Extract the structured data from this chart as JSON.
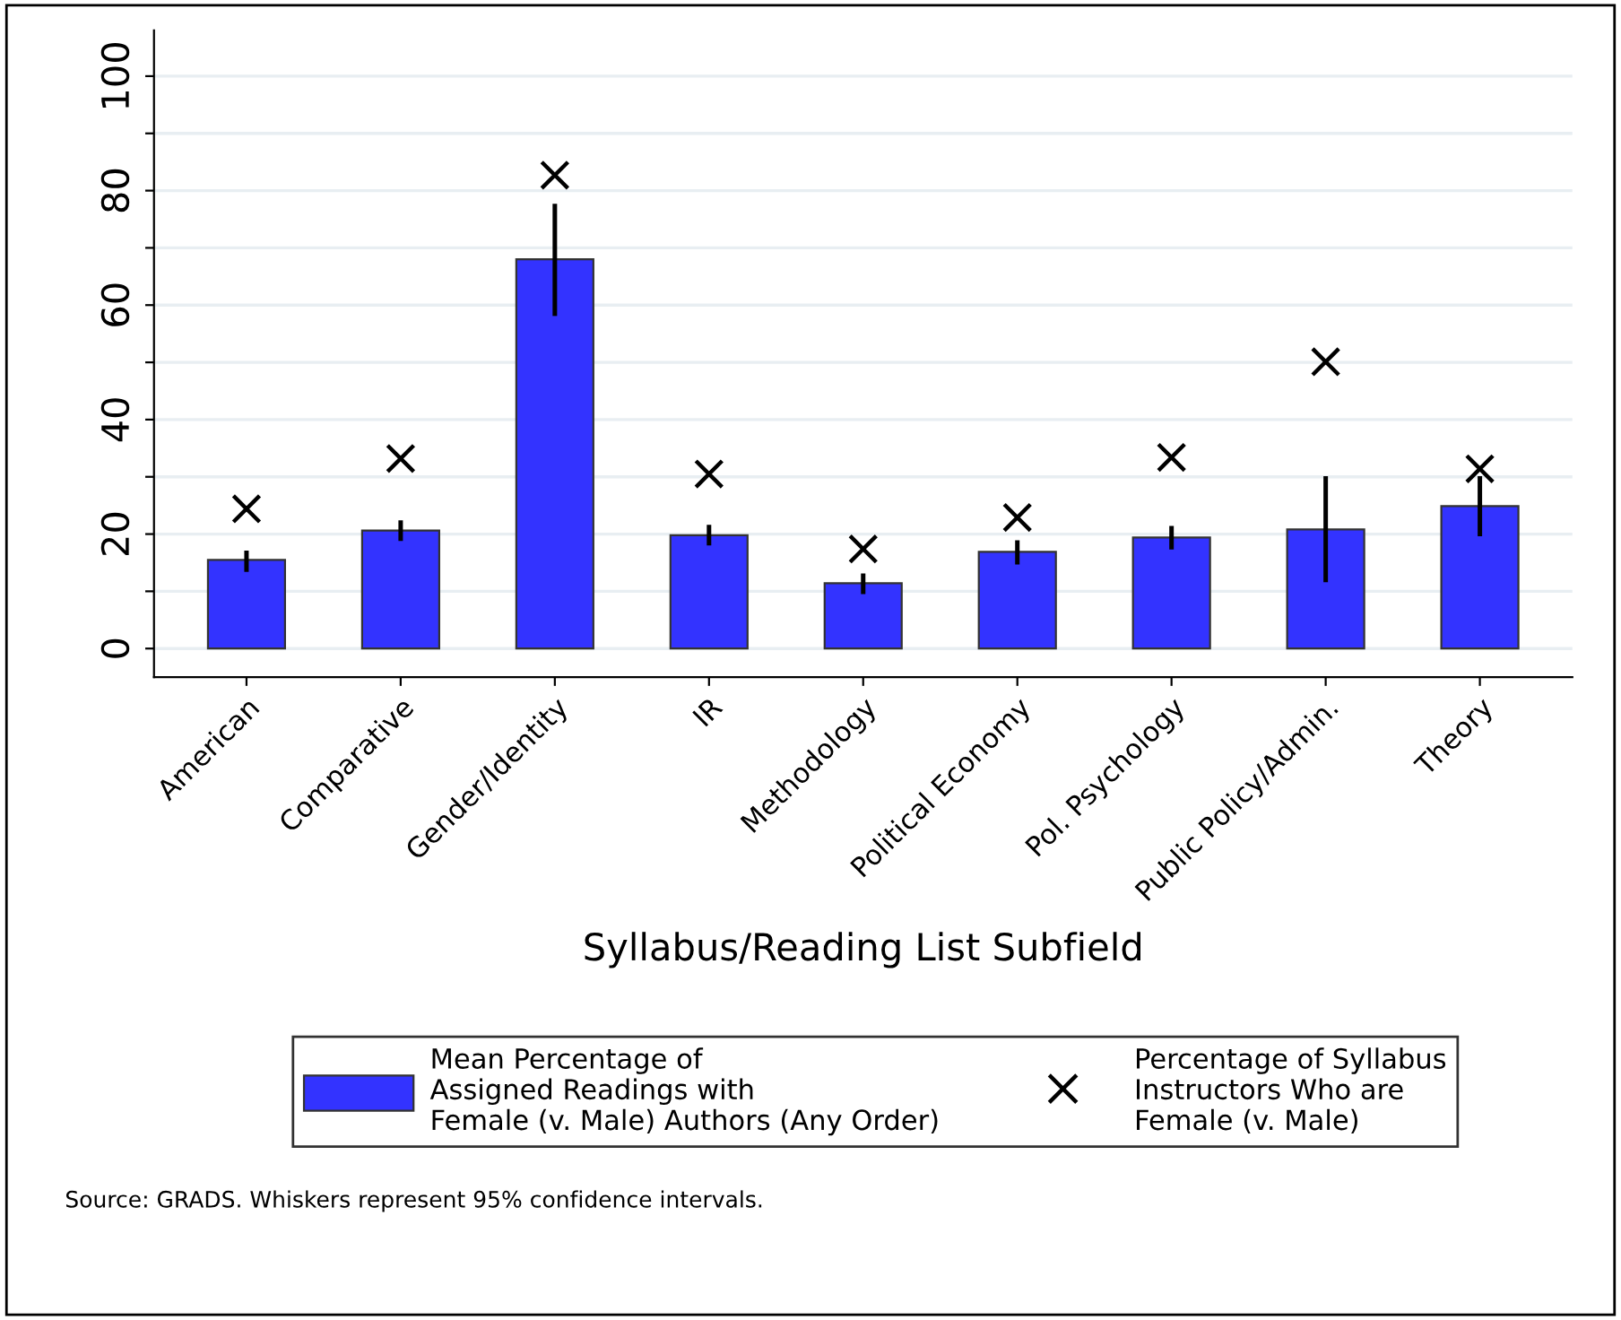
{
  "chart_data": {
    "type": "bar",
    "xlabel": "Syllabus/Reading List Subfield",
    "categories": [
      "American",
      "Comparative",
      "Gender/Identity",
      "IR",
      "Methodology",
      "Political Economy",
      "Pol. Psychology",
      "Public Policy/Admin.",
      "Theory"
    ],
    "series": [
      {
        "name": "Mean Percentage of\nAssigned Readings with\nFemale (v. Male) Authors (Any Order)",
        "color": "#3333ff",
        "values": [
          15.5,
          20.6,
          68.0,
          19.8,
          11.4,
          16.9,
          19.4,
          20.8,
          24.9
        ],
        "errors": [
          [
            13.4,
            17.1
          ],
          [
            18.8,
            22.4
          ],
          [
            58.1,
            77.7
          ],
          [
            18.0,
            21.6
          ],
          [
            9.5,
            13.1
          ],
          [
            14.7,
            18.9
          ],
          [
            17.3,
            21.4
          ],
          [
            11.6,
            30.1
          ],
          [
            19.6,
            30.1
          ]
        ]
      },
      {
        "name": "Percentage of Syllabus\nInstructors Who are\nFemale (v. Male)",
        "type": "scatter",
        "marker": "cross",
        "color": "#000000",
        "x": [
          "American",
          "Comparative",
          "Gender/Identity",
          "IR",
          "Methodology",
          "Political Economy",
          "Pol. Psychology",
          "Public Policy/Admin.",
          "Theory"
        ],
        "values": [
          24.4,
          33.2,
          82.7,
          30.5,
          17.4,
          22.9,
          33.4,
          50.1,
          31.4
        ]
      }
    ],
    "ylim": [
      -5,
      108
    ],
    "yticks": [
      0,
      {
        "value": 10,
        "label": null
      },
      20,
      {
        "value": 30,
        "label": null
      },
      40,
      {
        "value": 50,
        "label": null
      },
      60,
      {
        "value": 70,
        "label": null
      },
      80,
      {
        "value": 90,
        "label": null
      },
      100
    ],
    "grid": "y",
    "legend": "bottom",
    "annotations": [
      "Source: GRADS. Whiskers represent 95% confidence intervals."
    ]
  }
}
